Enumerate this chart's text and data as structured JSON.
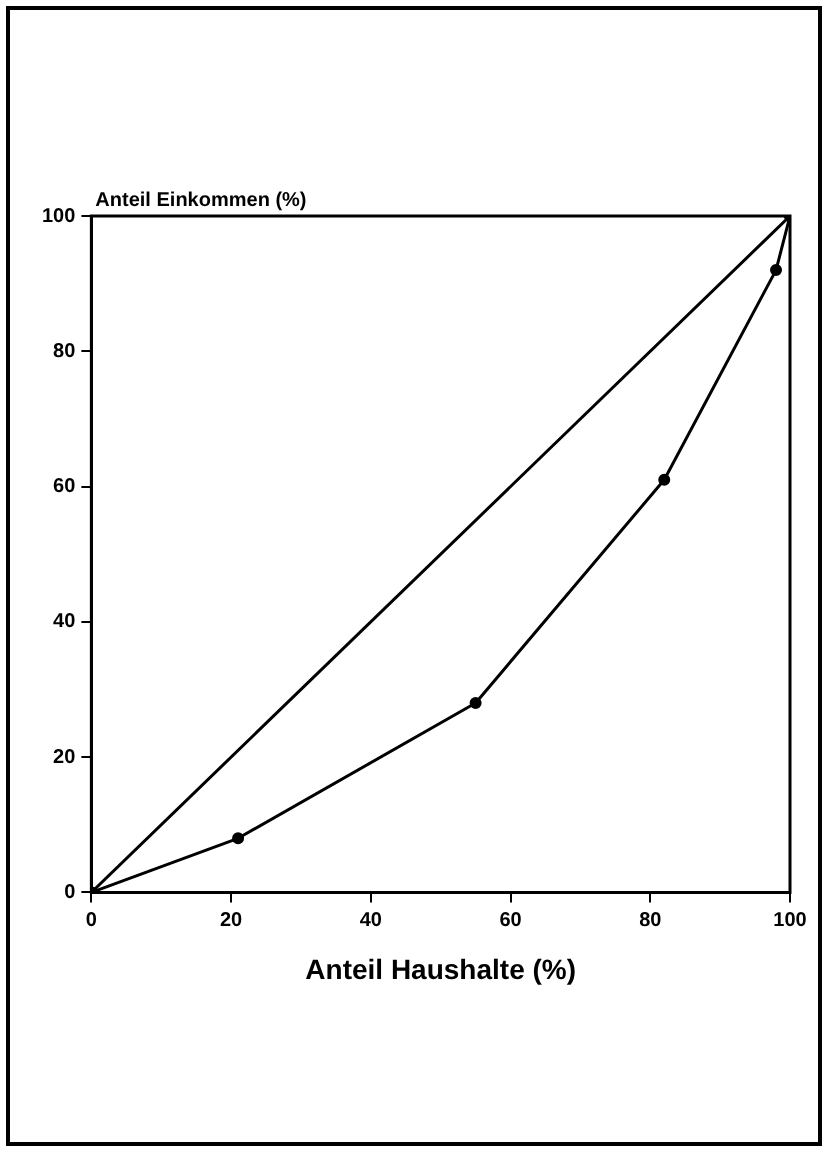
{
  "chart_data": {
    "type": "line",
    "ylabel": "Anteil Einkommen (%)",
    "xlabel": "Anteil Haushalte (%)",
    "xlim": [
      0,
      100
    ],
    "xticks": [
      0,
      20,
      40,
      60,
      80,
      100
    ],
    "ylim": [
      0,
      100
    ],
    "yticks": [
      0,
      20,
      40,
      60,
      80,
      100
    ],
    "grid": false,
    "legend": false,
    "line_style": "solid",
    "series": [
      {
        "color": "#000000",
        "x": [
          0,
          100
        ],
        "values": [
          0,
          100
        ],
        "marker": "circle"
      },
      {
        "color": "#000000",
        "x": [
          0,
          21,
          55,
          82,
          98,
          100
        ],
        "values": [
          0,
          8,
          28,
          61,
          92,
          100
        ],
        "marker": "circle"
      }
    ]
  }
}
